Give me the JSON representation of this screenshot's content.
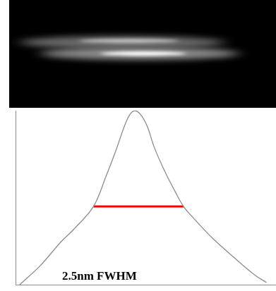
{
  "chart_data": {
    "type": "line",
    "annotation": "2.5nm FWHM",
    "xlim": [
      0,
      100
    ],
    "ylim": [
      0,
      100
    ],
    "tick_labels": false,
    "grid": false,
    "series": [
      {
        "color": "#8c8c8c",
        "line_style": "solid",
        "x": [
          1.6,
          9.5,
          17.5,
          22.8,
          30.0,
          34.7,
          38.7,
          41.9,
          44.0,
          45.9,
          48.0,
          50.7,
          53.3,
          57.3,
          61.3,
          64.7,
          69.2,
          75.9,
          83.8,
          91.8,
          96.6
        ],
        "values": [
          0,
          10.9,
          24.6,
          32.4,
          44.9,
          61.7,
          77.3,
          91.0,
          97.7,
          100,
          98.0,
          91.0,
          79.3,
          65.6,
          53.9,
          44.9,
          37.1,
          26.6,
          16.0,
          5.9,
          1.2
        ]
      },
      {
        "color": "#ff0000",
        "line_style": "solid",
        "x": [
          30.0,
          64.7
        ],
        "values": [
          44.9,
          44.9
        ]
      }
    ]
  }
}
